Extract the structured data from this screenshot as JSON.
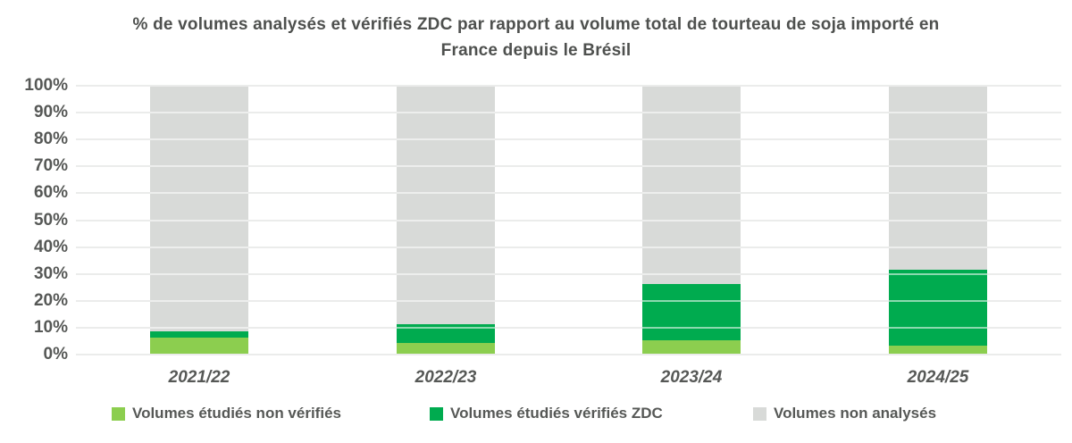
{
  "chart_data": {
    "type": "bar",
    "stacked": true,
    "title": "% de volumes analysés et vérifiés ZDC par rapport au volume total de tourteau de soja importé en France depuis le Brésil",
    "categories": [
      "2021/22",
      "2022/23",
      "2023/24",
      "2024/25"
    ],
    "series": [
      {
        "name": "Volumes étudiés non vérifiés",
        "color": "#8CCE4F",
        "values": [
          6,
          4,
          5,
          3
        ]
      },
      {
        "name": "Volumes étudiés vérifiés ZDC",
        "color": "#00AB4F",
        "values": [
          2.5,
          7,
          21,
          28.5
        ]
      },
      {
        "name": "Volumes non analysés",
        "color": "#D8DAD8",
        "values": [
          91.5,
          89,
          74,
          68.5
        ]
      }
    ],
    "xlabel": "",
    "ylabel": "",
    "ylim": [
      0,
      100
    ],
    "y_ticks": [
      "0%",
      "10%",
      "20%",
      "30%",
      "40%",
      "50%",
      "60%",
      "70%",
      "80%",
      "90%",
      "100%"
    ],
    "grid": true,
    "legend_position": "bottom",
    "colors": {
      "background": "#FFFFFF",
      "gridline": "#D2D4D2",
      "title_text": "#4E504E",
      "axis_text": "#565856",
      "legend_text": "#565856"
    }
  }
}
